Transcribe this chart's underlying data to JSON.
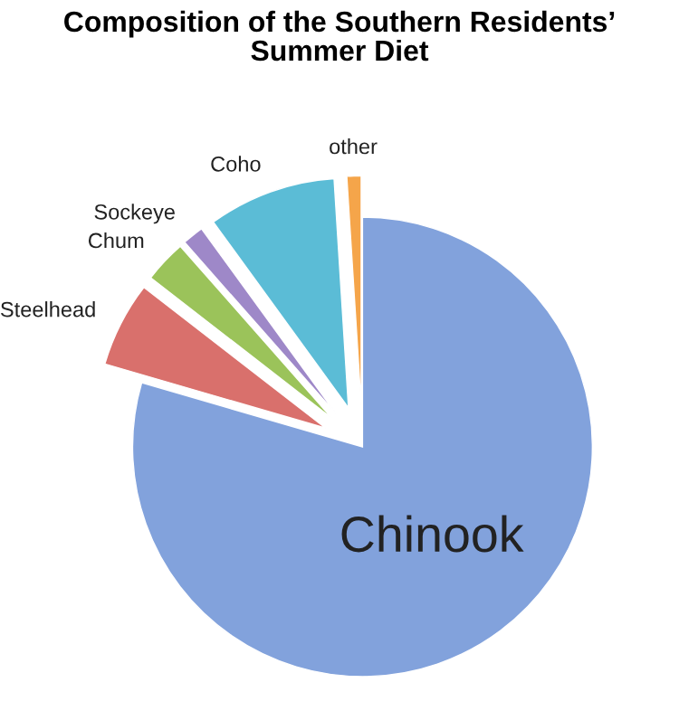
{
  "chart_data": {
    "type": "pie",
    "title": "Composition of the Southern Residents’\nSummer Diet",
    "categories": [
      "Chinook",
      "Steelhead",
      "Chum",
      "Sockeye",
      "Coho",
      "other"
    ],
    "values": [
      79.5,
      6,
      3,
      1.5,
      9,
      1
    ],
    "colors": [
      "#82a2dc",
      "#d9706c",
      "#9bc35a",
      "#9e88c8",
      "#5bbcd6",
      "#f5a54a"
    ],
    "legend": false
  }
}
